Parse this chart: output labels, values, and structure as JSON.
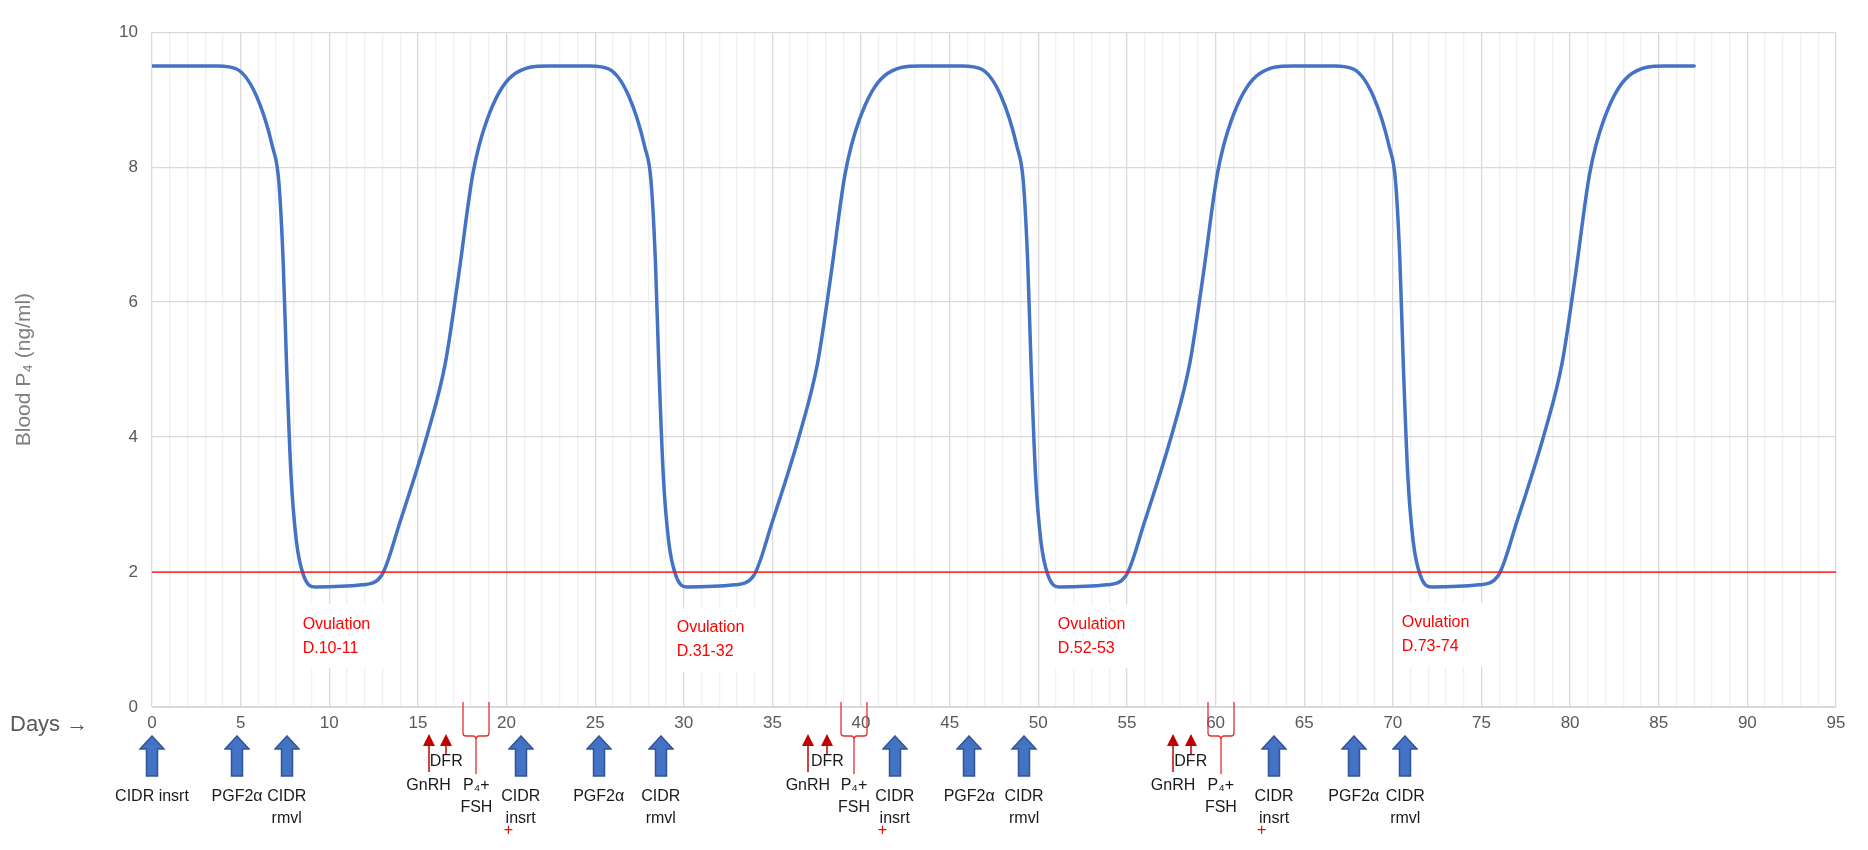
{
  "chart_data": {
    "type": "line",
    "xlabel": "Days →",
    "ylabel": "Blood P₄ (ng/ml)",
    "x": [
      0,
      3.7,
      4.8,
      5.9,
      6.8,
      7.15,
      7.4,
      7.6,
      7.85,
      8.15,
      8.55,
      9.2,
      11.85,
      12.95,
      14.0,
      15.6,
      16.55,
      17.3,
      18.1,
      18.9,
      20.3,
      22.35,
      24.7,
      25.8,
      26.9,
      27.8,
      28.15,
      28.4,
      28.6,
      28.85,
      29.15,
      29.55,
      30.2,
      32.85,
      33.95,
      35.0,
      36.6,
      37.55,
      38.3,
      39.1,
      39.9,
      41.3,
      43.35,
      45.7,
      46.8,
      47.9,
      48.8,
      49.15,
      49.4,
      49.6,
      49.85,
      50.15,
      50.55,
      51.2,
      53.85,
      54.95,
      56.0,
      57.6,
      58.55,
      59.3,
      60.1,
      60.9,
      62.3,
      64.35,
      66.7,
      67.8,
      68.9,
      69.8,
      70.15,
      70.4,
      70.6,
      70.85,
      71.15,
      71.55,
      72.2,
      74.85,
      75.95,
      77.0,
      78.6,
      79.55,
      80.3,
      81.1,
      81.9,
      83.3,
      85.35,
      87
    ],
    "series": [
      {
        "color": "#4472c4",
        "values": [
          9.5,
          9.5,
          9.45,
          9.05,
          8.3,
          7.8,
          6.6,
          5.0,
          3.4,
          2.45,
          1.95,
          1.78,
          1.81,
          1.95,
          2.75,
          4.1,
          5.1,
          6.4,
          7.9,
          8.7,
          9.35,
          9.5,
          9.5,
          9.45,
          9.05,
          8.3,
          7.8,
          6.6,
          5.0,
          3.4,
          2.45,
          1.95,
          1.78,
          1.81,
          1.95,
          2.75,
          4.1,
          5.1,
          6.4,
          7.9,
          8.7,
          9.35,
          9.5,
          9.5,
          9.45,
          9.05,
          8.3,
          7.8,
          6.6,
          5.0,
          3.4,
          2.45,
          1.95,
          1.78,
          1.81,
          1.95,
          2.75,
          4.1,
          5.1,
          6.4,
          7.9,
          8.7,
          9.35,
          9.5,
          9.5,
          9.45,
          9.05,
          8.3,
          7.8,
          6.6,
          5.0,
          3.4,
          2.45,
          1.95,
          1.78,
          1.81,
          1.95,
          2.75,
          4.1,
          5.1,
          6.4,
          7.9,
          8.7,
          9.35,
          9.5,
          9.5
        ]
      }
    ],
    "xlim": [
      0,
      95
    ],
    "xticks": [
      0,
      {
        "value": 1,
        "label": null
      },
      {
        "value": 2,
        "label": null
      },
      {
        "value": 3,
        "label": null
      },
      {
        "value": 4,
        "label": null
      },
      5,
      {
        "value": 6,
        "label": null
      },
      {
        "value": 7,
        "label": null
      },
      {
        "value": 8,
        "label": null
      },
      {
        "value": 9,
        "label": null
      },
      10,
      {
        "value": 11,
        "label": null
      },
      {
        "value": 12,
        "label": null
      },
      {
        "value": 13,
        "label": null
      },
      {
        "value": 14,
        "label": null
      },
      15,
      {
        "value": 16,
        "label": null
      },
      {
        "value": 17,
        "label": null
      },
      {
        "value": 18,
        "label": null
      },
      {
        "value": 19,
        "label": null
      },
      20,
      {
        "value": 21,
        "label": null
      },
      {
        "value": 22,
        "label": null
      },
      {
        "value": 23,
        "label": null
      },
      {
        "value": 24,
        "label": null
      },
      25,
      {
        "value": 26,
        "label": null
      },
      {
        "value": 27,
        "label": null
      },
      {
        "value": 28,
        "label": null
      },
      {
        "value": 29,
        "label": null
      },
      30,
      {
        "value": 31,
        "label": null
      },
      {
        "value": 32,
        "label": null
      },
      {
        "value": 33,
        "label": null
      },
      {
        "value": 34,
        "label": null
      },
      35,
      {
        "value": 36,
        "label": null
      },
      {
        "value": 37,
        "label": null
      },
      {
        "value": 38,
        "label": null
      },
      {
        "value": 39,
        "label": null
      },
      40,
      {
        "value": 41,
        "label": null
      },
      {
        "value": 42,
        "label": null
      },
      {
        "value": 43,
        "label": null
      },
      {
        "value": 44,
        "label": null
      },
      45,
      {
        "value": 46,
        "label": null
      },
      {
        "value": 47,
        "label": null
      },
      {
        "value": 48,
        "label": null
      },
      {
        "value": 49,
        "label": null
      },
      50,
      {
        "value": 51,
        "label": null
      },
      {
        "value": 52,
        "label": null
      },
      {
        "value": 53,
        "label": null
      },
      {
        "value": 54,
        "label": null
      },
      55,
      {
        "value": 56,
        "label": null
      },
      {
        "value": 57,
        "label": null
      },
      {
        "value": 58,
        "label": null
      },
      {
        "value": 59,
        "label": null
      },
      60,
      {
        "value": 61,
        "label": null
      },
      {
        "value": 62,
        "label": null
      },
      {
        "value": 63,
        "label": null
      },
      {
        "value": 64,
        "label": null
      },
      65,
      {
        "value": 66,
        "label": null
      },
      {
        "value": 67,
        "label": null
      },
      {
        "value": 68,
        "label": null
      },
      {
        "value": 69,
        "label": null
      },
      70,
      {
        "value": 71,
        "label": null
      },
      {
        "value": 72,
        "label": null
      },
      {
        "value": 73,
        "label": null
      },
      {
        "value": 74,
        "label": null
      },
      75,
      {
        "value": 76,
        "label": null
      },
      {
        "value": 77,
        "label": null
      },
      {
        "value": 78,
        "label": null
      },
      {
        "value": 79,
        "label": null
      },
      80,
      {
        "value": 81,
        "label": null
      },
      {
        "value": 82,
        "label": null
      },
      {
        "value": 83,
        "label": null
      },
      {
        "value": 84,
        "label": null
      },
      85,
      {
        "value": 86,
        "label": null
      },
      {
        "value": 87,
        "label": null
      },
      {
        "value": 88,
        "label": null
      },
      {
        "value": 89,
        "label": null
      },
      90,
      {
        "value": 91,
        "label": null
      },
      {
        "value": 92,
        "label": null
      },
      {
        "value": 93,
        "label": null
      },
      {
        "value": 94,
        "label": null
      },
      95
    ],
    "ylim": [
      0,
      10
    ],
    "yticks": [
      0,
      2,
      4,
      6,
      8,
      10
    ],
    "grid": true,
    "ref_lines": [
      {
        "axis": "y",
        "value": 2,
        "color": "#ff0000"
      }
    ],
    "annotations": [
      "Ovulation\nD.10-11",
      "Ovulation\nD.31-32",
      "Ovulation\nD.52-53",
      "Ovulation\nD.73-74",
      "CIDR insrt",
      "PGF2α",
      "CIDR\nrmvl",
      "GnRH",
      "DFR",
      "P₄+\nFSH",
      "CIDR\ninsrt",
      "+",
      "PGF2α",
      "CIDR\nrmvl",
      "GnRH",
      "DFR",
      "P₄+\nFSH",
      "CIDR\ninsrt",
      "+",
      "PGF2α",
      "CIDR\nrmvl",
      "GnRH",
      "DFR",
      "P₄+\nFSH",
      "CIDR\ninsrt",
      "+",
      "PGF2α",
      "CIDR\nrmvl"
    ]
  }
}
